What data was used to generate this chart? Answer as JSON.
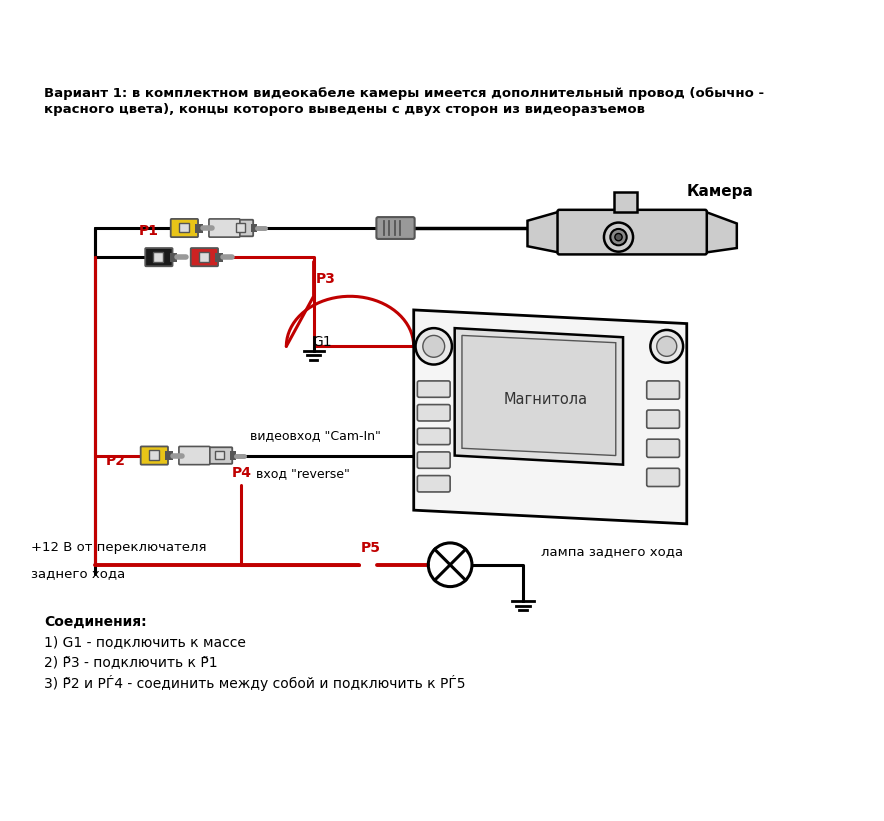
{
  "bg_color": "#ffffff",
  "title_text": "Вариант 1: в комплектном видеокабеле камеры имеется дополнительный провод (обычно -",
  "title_text2": "красного цвета), концы которого выведены с двух сторон из видеоразъемов",
  "camera_label": "Камера",
  "magnitola_label": "Магнитола",
  "lamp_label": "лампа заднего хода",
  "plus12_label": "+12 В от переключателя",
  "plus12_label2": "заднего хода",
  "video_in_label": "видеовход \"Cam-In\"",
  "reverse_in_label": "вход \"reverse\"",
  "connections_title": "Соединения:",
  "connection1": "1) G1 - подключить к массе",
  "connection2": "2) Р̃3 - подключить к Р̃1",
  "connection3": "3) Р̃2 и РЃ4 - соединить между собой и подключить к РЃ5",
  "wire_black": "#000000",
  "wire_red": "#c00000",
  "col_yellow": "#e8c418",
  "col_black": "#1a1a1a",
  "col_red": "#cc2222",
  "col_gray": "#999999",
  "col_lgray": "#cccccc",
  "col_dgray": "#555555",
  "label_red": "#c00000"
}
